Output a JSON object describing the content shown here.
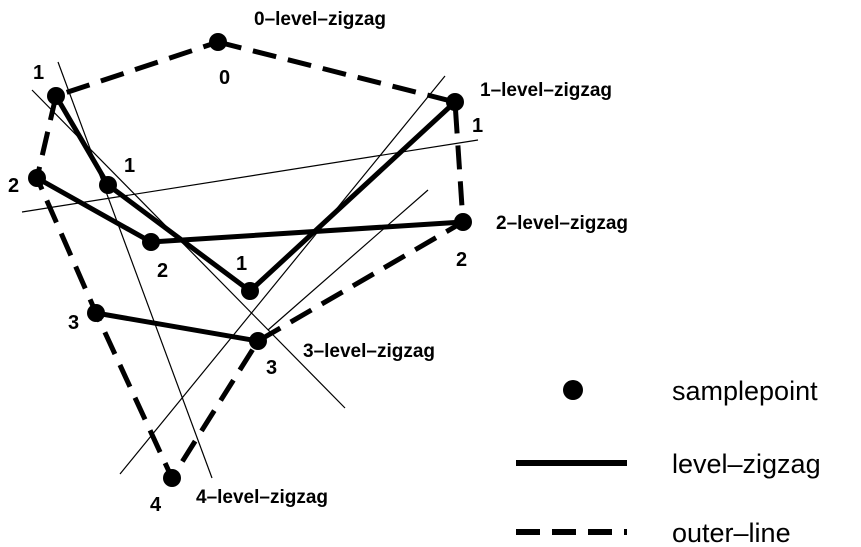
{
  "points": {
    "p0": {
      "label": "0"
    },
    "p1a": {
      "label": "1"
    },
    "p1b": {
      "label": "1"
    },
    "p1c": {
      "label": "1"
    },
    "p1d": {
      "label": "1"
    },
    "p2a": {
      "label": "2"
    },
    "p2b": {
      "label": "2"
    },
    "p2c": {
      "label": "2"
    },
    "p3a": {
      "label": "3"
    },
    "p3b": {
      "label": "3"
    },
    "p4": {
      "label": "4"
    }
  },
  "zigzag_labels": {
    "level0": "0–level–zigzag",
    "level1": "1–level–zigzag",
    "level2": "2–level–zigzag",
    "level3": "3–level–zigzag",
    "level4": "4–level–zigzag"
  },
  "legend": {
    "samplepoint": "samplepoint",
    "level_zigzag": "level–zigzag",
    "outer_line": "outer–line"
  }
}
